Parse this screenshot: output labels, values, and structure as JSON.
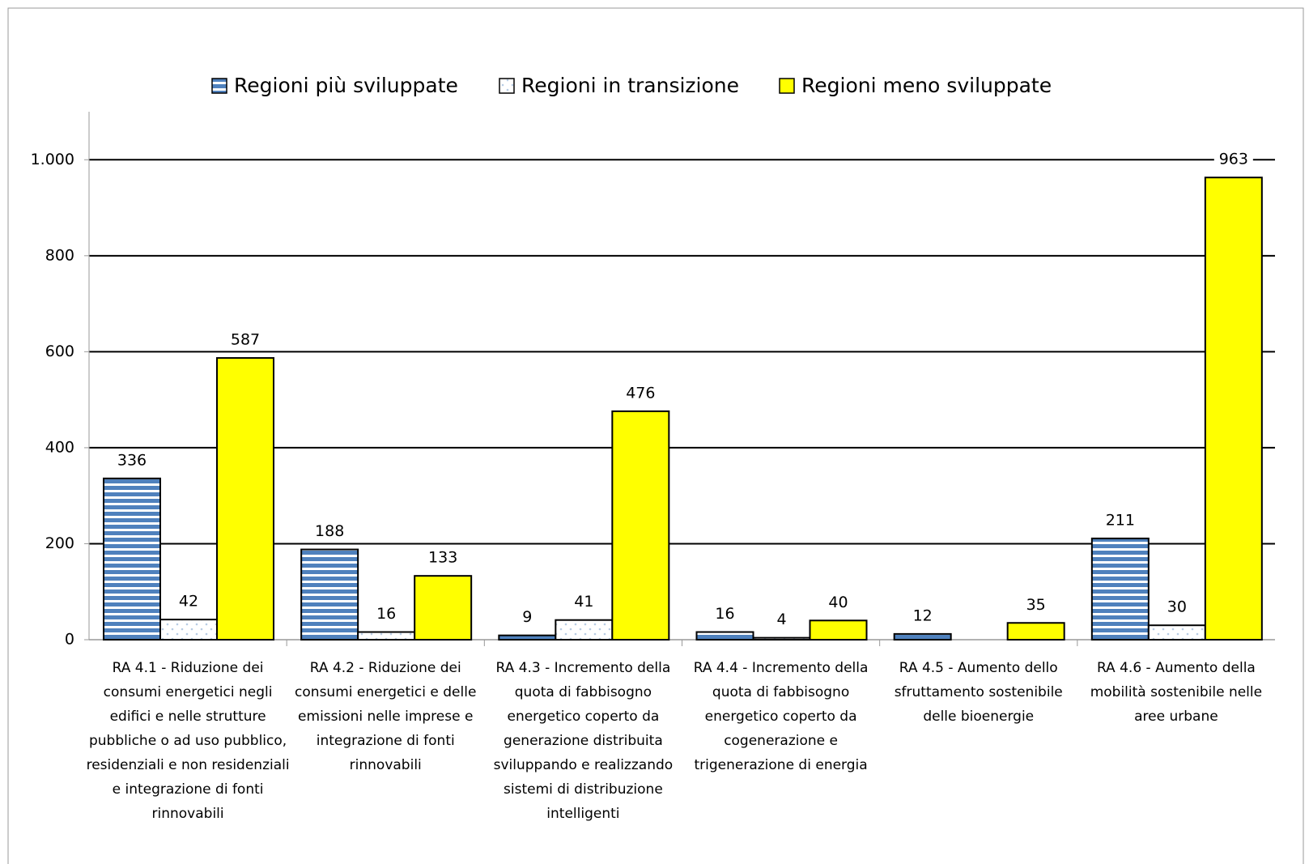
{
  "chart_data": {
    "type": "bar",
    "categories": [
      "RA 4.1 - Riduzione dei consumi energetici negli edifici e nelle strutture pubbliche o ad uso pubblico, residenziali e non residenziali e integrazione di fonti rinnovabili",
      "RA 4.2 - Riduzione dei consumi energetici e delle emissioni nelle imprese e integrazione di fonti rinnovabili",
      "RA 4.3 - Incremento della quota di fabbisogno energetico coperto da generazione distribuita sviluppando e realizzando sistemi di distribuzione intelligenti",
      "RA 4.4 - Incremento della quota di fabbisogno energetico coperto da cogenerazione e trigenerazione di energia",
      "RA 4.5 - Aumento dello sfruttamento sostenibile delle bioenergie",
      "RA 4.6 - Aumento della mobilità sostenibile nelle aree urbane"
    ],
    "series": [
      {
        "name": "Regioni più sviluppate",
        "color": "#4f81bd",
        "values": [
          336,
          188,
          9,
          16,
          12,
          211
        ]
      },
      {
        "name": "Regioni in transizione",
        "color": "#dbe5f1",
        "values": [
          42,
          16,
          41,
          4,
          null,
          30
        ]
      },
      {
        "name": "Regioni meno sviluppate",
        "color": "#ffff00",
        "values": [
          587,
          133,
          476,
          40,
          35,
          963
        ]
      }
    ],
    "ylim": [
      0,
      1100
    ],
    "yticks": [
      0,
      200,
      400,
      600,
      800,
      {
        "value": 1000,
        "label": "1.000"
      }
    ],
    "grid": true,
    "legend": "top"
  }
}
